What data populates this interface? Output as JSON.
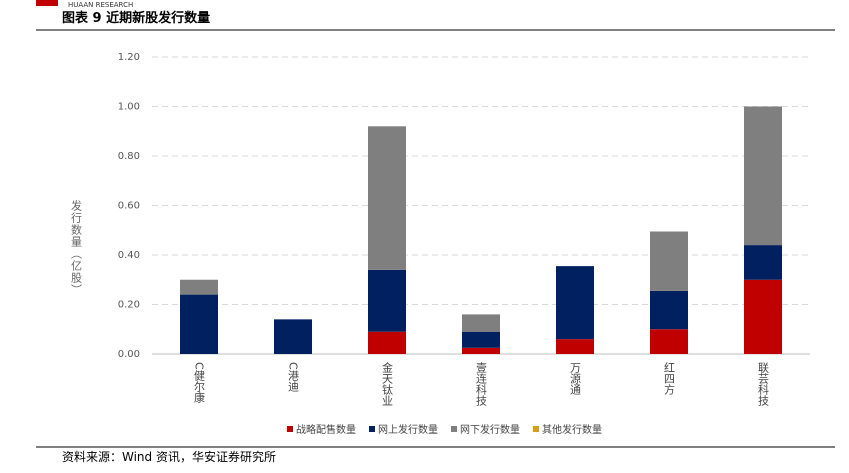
{
  "header": {
    "brand": "HUAAN RESEARCH"
  },
  "chart_data": {
    "type": "stacked_bar",
    "title": "图表 9 近期新股发行数量",
    "y_label": "发行数量（亿股）",
    "categories": [
      "C健尔康",
      "C港迪",
      "金天钛业",
      "壹连科技",
      "万源通",
      "红四方",
      "联芸科技"
    ],
    "series": [
      {
        "name": "战略配售数量",
        "color": "#c00000",
        "values": [
          0,
          0,
          0.09,
          0.025,
          0.06,
          0.1,
          0.3
        ]
      },
      {
        "name": "网上发行数量",
        "color": "#002060",
        "values": [
          0.24,
          0.14,
          0.25,
          0.065,
          0.295,
          0.155,
          0.14
        ]
      },
      {
        "name": "网下发行数量",
        "color": "#7f7f7f",
        "values": [
          0.06,
          0,
          0.58,
          0.07,
          0,
          0.24,
          0.56
        ]
      },
      {
        "name": "其他发行数量",
        "color": "#d4a017",
        "values": [
          0,
          0,
          0,
          0,
          0,
          0,
          0
        ]
      }
    ],
    "ylim": [
      0,
      1.2
    ],
    "yticks": [
      {
        "value": 0,
        "label": "0.00"
      },
      {
        "value": 0.2,
        "label": "0.20"
      },
      {
        "value": 0.4,
        "label": "0.40"
      },
      {
        "value": 0.6,
        "label": "0.60"
      },
      {
        "value": 0.8,
        "label": "0.80"
      },
      {
        "value": 1.0,
        "label": "1.00"
      },
      {
        "value": 1.2,
        "label": "1.20"
      }
    ],
    "grid": true,
    "legend": "bottom",
    "source": "资料来源：Wind 资讯，华安证券研究所"
  }
}
